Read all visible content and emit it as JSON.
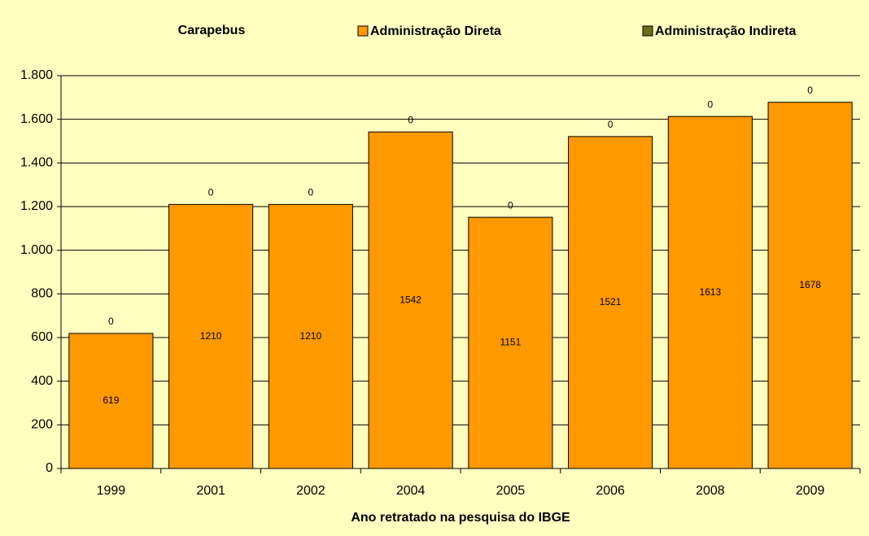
{
  "chart_data": {
    "type": "stacked_bar",
    "title": "Carapebus",
    "x_label": "Ano retratado na pesquisa do IBGE",
    "categories": [
      "1999",
      "2001",
      "2002",
      "2004",
      "2005",
      "2006",
      "2008",
      "2009"
    ],
    "series": [
      {
        "name": "Administração Direta",
        "color": "#ff9900",
        "values": [
          619,
          1210,
          1210,
          1542,
          1151,
          1521,
          1613,
          1678
        ]
      },
      {
        "name": "Administração Indireta",
        "color": "#6b6b1a",
        "values": [
          0,
          0,
          0,
          0,
          0,
          0,
          0,
          0
        ]
      }
    ],
    "ylim": [
      0,
      1800
    ],
    "yticks": [
      0,
      200,
      400,
      600,
      800,
      {
        "value": 1000,
        "label": "1.000"
      },
      {
        "value": 1200,
        "label": "1.200"
      },
      {
        "value": 1400,
        "label": "1.400"
      },
      {
        "value": 1600,
        "label": "1.600"
      },
      {
        "value": 1800,
        "label": "1.800"
      }
    ],
    "grid": true
  }
}
